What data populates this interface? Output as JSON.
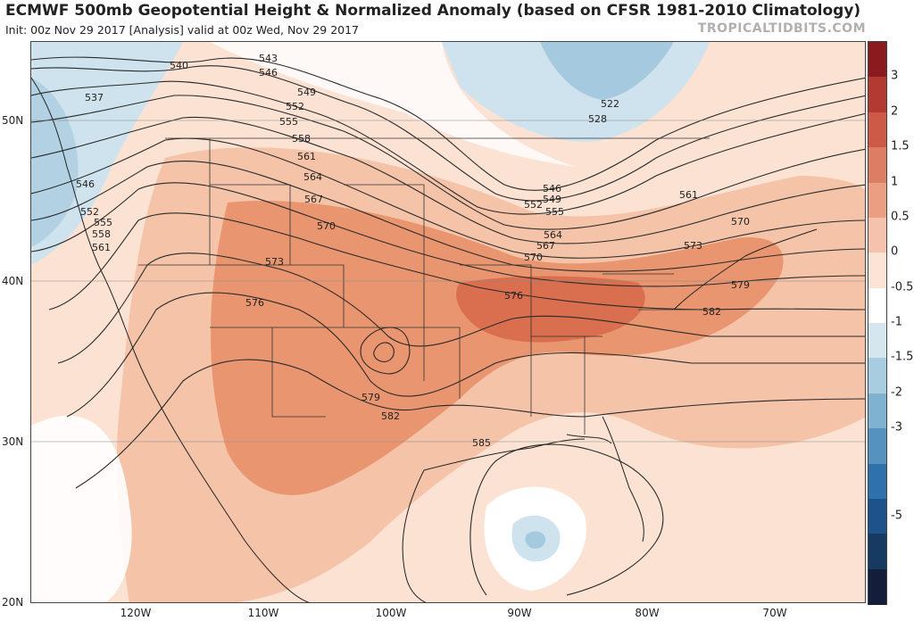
{
  "title": "ECMWF 500mb Geopotential Height & Normalized Anomaly (based on CFSR 1981-2010 Climatology)",
  "subtitle": "Init: 00z Nov 29 2017   [Analysis]   valid at 00z Wed, Nov 29 2017",
  "credit": "TROPICALTIDBITS.COM",
  "latitude_labels": [
    "50N",
    "40N",
    "30N",
    "20N"
  ],
  "longitude_labels": [
    "120W",
    "110W",
    "100W",
    "90W",
    "80W",
    "70W"
  ],
  "contour_labels": [
    "537",
    "540",
    "543",
    "546",
    "549",
    "552",
    "555",
    "558",
    "561",
    "564",
    "567",
    "570",
    "573",
    "576",
    "579",
    "582",
    "585",
    "522",
    "528",
    "546",
    "549",
    "552",
    "555",
    "564",
    "567",
    "570",
    "573",
    "576",
    "579",
    "582",
    "570",
    "561",
    "546",
    "552",
    "555",
    "558",
    "561"
  ],
  "colorbar": {
    "labels": [
      "3",
      "2",
      "1.5",
      "1",
      "0.5",
      "0",
      "-0.5",
      "-1",
      "-1.5",
      "-2",
      "-3",
      "-5"
    ],
    "colors": [
      "#8b1a1f",
      "#b23a33",
      "#cc5a46",
      "#dc7e63",
      "#ea9f83",
      "#f5c3ad",
      "#fbe3d6",
      "#ffffff",
      "#d6e6ef",
      "#a9cde0",
      "#7fb1d1",
      "#5592c0",
      "#2f71aa",
      "#1d528a",
      "#173a63",
      "#141d3a"
    ]
  },
  "map_colors": {
    "pos_strong": "#d96f4f",
    "pos_med": "#e9956f",
    "pos_light": "#f4c3a8",
    "pos_faint": "#fbe2d3",
    "neg_light": "#cfe3ee",
    "neg_med": "#a5c9de",
    "neutral": "#ffffff"
  }
}
